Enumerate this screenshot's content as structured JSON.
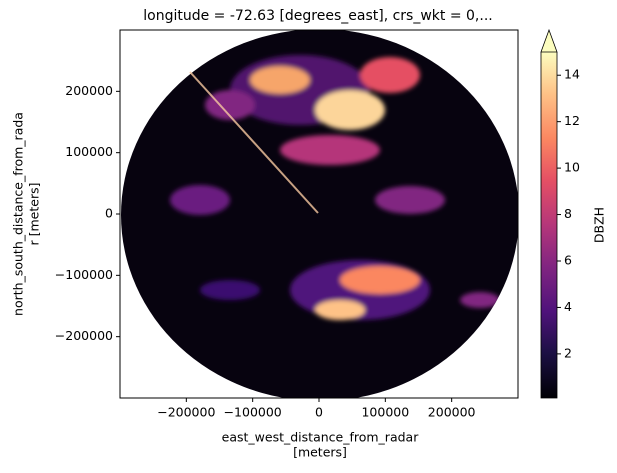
{
  "chart_data": {
    "type": "heatmap",
    "title": "longitude = -72.63 [degrees_east], crs_wkt = 0,...",
    "x_label": [
      "east_west_distance_from_radar",
      "[meters]"
    ],
    "y_label": [
      "north_south_distance_from_rada",
      "r [meters]"
    ],
    "xlim": [
      -300000,
      300000
    ],
    "ylim": [
      -300000,
      300000
    ],
    "xticks": [
      {
        "value": -200000,
        "label": "−200000"
      },
      {
        "value": -100000,
        "label": "−100000"
      },
      0,
      100000,
      200000
    ],
    "yticks": [
      {
        "value": -200000,
        "label": "−200000"
      },
      {
        "value": -100000,
        "label": "−100000"
      },
      0,
      100000,
      200000
    ],
    "colorbar": {
      "label": "DBZH",
      "clim": [
        0.1,
        15
      ],
      "ticks": [
        2,
        4,
        6,
        8,
        10,
        12,
        14
      ],
      "extend": "max"
    }
  }
}
